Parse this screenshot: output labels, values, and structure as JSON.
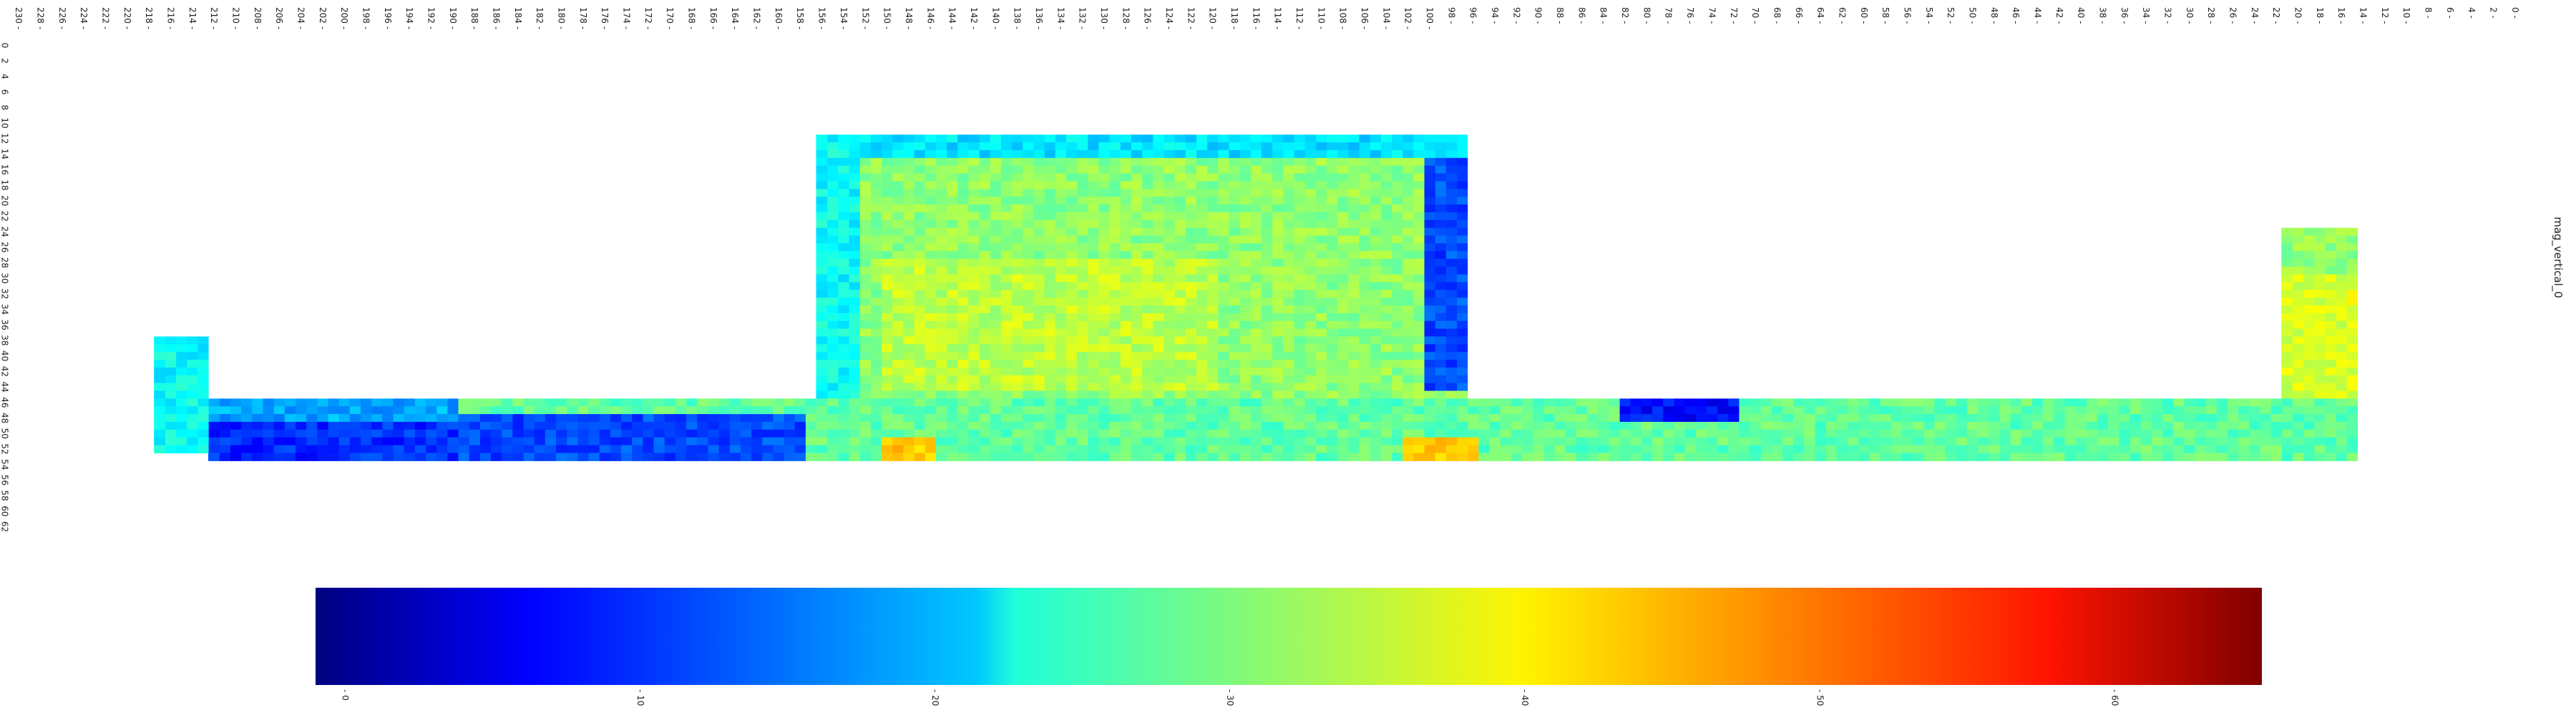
{
  "chart_data": {
    "type": "heatmap",
    "title": "mag_vertical_0",
    "colormap": "jet",
    "x_ticks": [
      0,
      2,
      4,
      6,
      8,
      10,
      12,
      14,
      16,
      18,
      20,
      22,
      24,
      26,
      28,
      30,
      32,
      34,
      36,
      38,
      40,
      42,
      44,
      46,
      48,
      50,
      52,
      54,
      56,
      58,
      60,
      62,
      64,
      66,
      68,
      70,
      72,
      74,
      76,
      78,
      80,
      82,
      84,
      86,
      88,
      90,
      92,
      94,
      96,
      98,
      100,
      102,
      104,
      106,
      108,
      110,
      112,
      114,
      116,
      118,
      120,
      122,
      124,
      126,
      128,
      130,
      132,
      134,
      136,
      138,
      140,
      142,
      144,
      146,
      148,
      150,
      152,
      154,
      156,
      158,
      160,
      162,
      164,
      166,
      168,
      170,
      172,
      174,
      176,
      178,
      180,
      182,
      184,
      186,
      188,
      190,
      192,
      194,
      196,
      198,
      200,
      202,
      204,
      206,
      208,
      210,
      212,
      214,
      216,
      218,
      220,
      222,
      224,
      226,
      228,
      230
    ],
    "x_reversed": true,
    "y_ticks": [
      0,
      2,
      4,
      6,
      8,
      10,
      12,
      14,
      16,
      18,
      20,
      22,
      24,
      26,
      28,
      30,
      32,
      34,
      36,
      38,
      40,
      42,
      44,
      46,
      48,
      50,
      52,
      54,
      56,
      58,
      60,
      62
    ],
    "y_range": [
      0,
      63
    ],
    "x_range": [
      0,
      231
    ],
    "colorbar": {
      "ticks": [
        0,
        10,
        20,
        30,
        40,
        50,
        60
      ],
      "range": [
        -1,
        65
      ]
    },
    "mask_regions": [
      {
        "region": "left_end_vertical_segment",
        "x": [
          213,
          218
        ],
        "y": [
          38,
          53
        ]
      },
      {
        "region": "left_horizontal_band",
        "x": [
          190,
          213
        ],
        "y": [
          46,
          54
        ]
      },
      {
        "region": "bottom_horizontal_band",
        "x": [
          15,
          207
        ],
        "y": [
          46,
          54
        ]
      },
      {
        "region": "central_block",
        "x": [
          97,
          157
        ],
        "y": [
          12,
          47
        ]
      },
      {
        "region": "right_end_vertical_segment",
        "x": [
          15,
          22
        ],
        "y": [
          24,
          50
        ]
      }
    ],
    "regions_values": [
      {
        "region": "central_block_interior",
        "approx_value": 33
      },
      {
        "region": "central_block_right_edge",
        "approx_value": 12
      },
      {
        "region": "left_band_lower_edge",
        "approx_value": 10
      },
      {
        "region": "bottom_band_mid",
        "approx_value": 30
      },
      {
        "region": "right_segment_top",
        "approx_value": 33
      },
      {
        "region": "hotspots_bottom_edge",
        "approx_value": 44
      }
    ]
  }
}
